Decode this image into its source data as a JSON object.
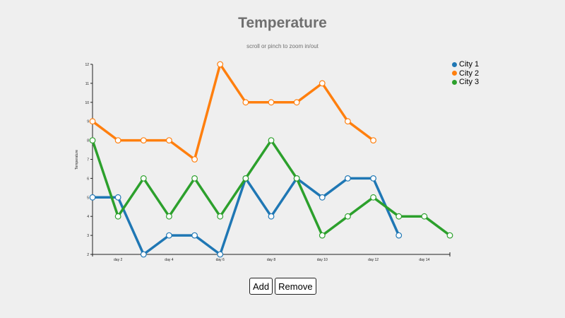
{
  "header": {
    "title": "Temperature",
    "subtitle": "scroll or pinch to zoom in/out"
  },
  "buttons": {
    "add_label": "Add",
    "remove_label": "Remove"
  },
  "chart_data": {
    "type": "line",
    "title": "Temperature",
    "subtitle": "scroll or pinch to zoom in/out",
    "xlabel": "",
    "ylabel": "Temperature",
    "x": [
      1,
      2,
      3,
      4,
      5,
      6,
      7,
      8,
      9,
      10,
      11,
      12,
      13,
      14,
      15
    ],
    "x_tick_labels": [
      "day 2",
      "day 4",
      "day 6",
      "day 8",
      "day 10",
      "day 12",
      "day 14"
    ],
    "x_tick_values": [
      2,
      4,
      6,
      8,
      10,
      12,
      14
    ],
    "y_ticks": [
      2,
      3,
      4,
      5,
      6,
      7,
      8,
      9,
      10,
      11,
      12
    ],
    "xlim": [
      1,
      15
    ],
    "ylim": [
      2,
      12
    ],
    "grid": false,
    "legend_position": "top-right",
    "series": [
      {
        "name": "City 1",
        "color": "#1f77b4",
        "values": [
          5,
          5,
          2,
          3,
          3,
          2,
          6,
          4,
          6,
          5,
          6,
          6,
          3
        ]
      },
      {
        "name": "City 2",
        "color": "#ff7f0e",
        "values": [
          9,
          8,
          8,
          8,
          7,
          12,
          10,
          10,
          10,
          11,
          9,
          8
        ]
      },
      {
        "name": "City 3",
        "color": "#2ca02c",
        "values": [
          8,
          4,
          6,
          4,
          6,
          4,
          6,
          8,
          6,
          3,
          4,
          5,
          4,
          4,
          3
        ]
      }
    ]
  }
}
